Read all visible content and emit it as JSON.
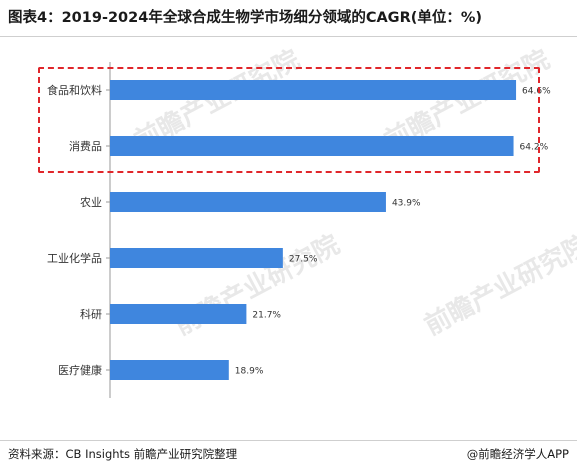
{
  "title": "图表4：2019-2024年全球合成生物学市场细分领域的CAGR(单位：%)",
  "footer": {
    "source": "资料来源：CB Insights 前瞻产业研究院整理",
    "brand": "@前瞻经济学人APP"
  },
  "watermark": "前瞻产业研究院",
  "colors": {
    "bar": "#3f86de",
    "highlight": "#e0262b",
    "axis": "#9a9a9a"
  },
  "chart_data": {
    "type": "bar",
    "orientation": "horizontal",
    "title": "图表4：2019-2024年全球合成生物学市场细分领域的CAGR(单位：%)",
    "categories": [
      "食品和饮料",
      "消费品",
      "农业",
      "工业化学品",
      "科研",
      "医疗健康"
    ],
    "values": [
      64.6,
      64.2,
      43.9,
      27.5,
      21.7,
      18.9
    ],
    "value_labels": [
      "64.6%",
      "64.2%",
      "43.9%",
      "27.5%",
      "21.7%",
      "18.9%"
    ],
    "unit": "%",
    "xlim": [
      0,
      70
    ],
    "grid": false,
    "highlighted_categories": [
      "食品和饮料",
      "消费品"
    ]
  }
}
